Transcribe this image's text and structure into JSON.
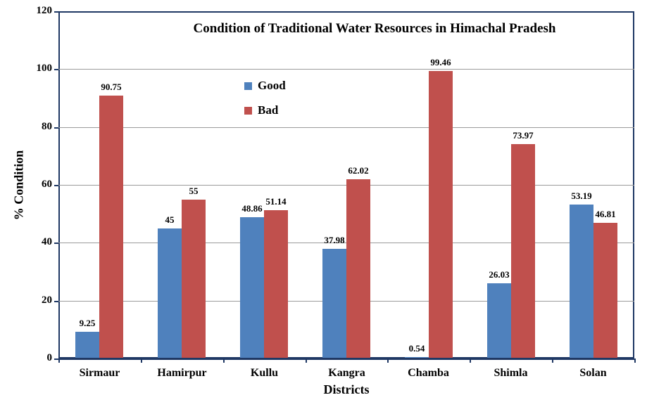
{
  "chart_data": {
    "type": "bar",
    "title": "Condition of Traditional Water Resources in Himachal Pradesh",
    "xlabel": "Districts",
    "ylabel": "% Condition",
    "categories": [
      "Sirmaur",
      "Hamirpur",
      "Kullu",
      "Kangra",
      "Chamba",
      "Shimla",
      "Solan"
    ],
    "series": [
      {
        "name": "Good",
        "color": "#4F81BD",
        "values": [
          9.25,
          45,
          48.86,
          37.98,
          0.54,
          26.03,
          53.19
        ]
      },
      {
        "name": "Bad",
        "color": "#C0504D",
        "values": [
          90.75,
          55,
          51.14,
          62.02,
          99.46,
          73.97,
          46.81
        ]
      }
    ],
    "data_labels": [
      "9.25",
      "90.75",
      "45",
      "55",
      "48.86",
      "51.14",
      "37.98",
      "62.02",
      "0.54",
      "99.46",
      "26.03",
      "73.97",
      "53.19",
      "46.81"
    ],
    "ylim": [
      0,
      120
    ],
    "yticks": [
      0,
      20,
      40,
      60,
      80,
      100,
      120
    ],
    "grid": true,
    "legend_position": "inside-top-center",
    "colors": {
      "axis_and_border": "#1F3864",
      "gridline": "#9B9B9B",
      "background": "#FFFFFF",
      "text": "#000000"
    }
  }
}
